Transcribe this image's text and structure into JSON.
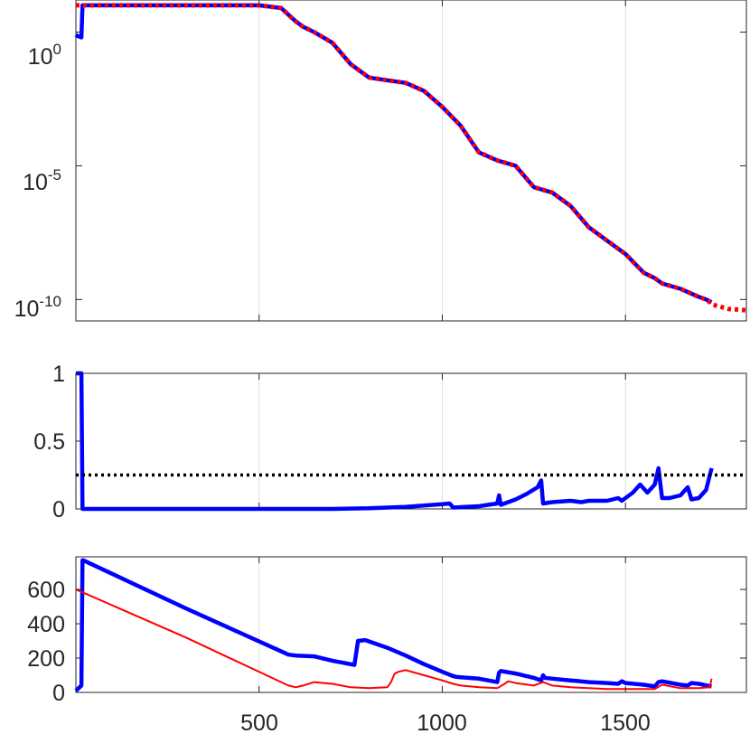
{
  "chart_data": [
    {
      "type": "line",
      "title": "",
      "xlabel": "",
      "ylabel": "",
      "xlim": [
        0,
        1830
      ],
      "xticks": [
        500,
        1000,
        1500
      ],
      "x_ticklabels_visible": false,
      "yscale": "log",
      "ylim_exponents": [
        -10.8,
        1.2
      ],
      "yticks": [
        {
          "base": "10",
          "exp": "0",
          "value_exp": 0
        },
        {
          "base": "10",
          "exp": "-5",
          "value_exp": -5
        },
        {
          "base": "10",
          "exp": "-10",
          "value_exp": -10
        }
      ],
      "grid_x": true,
      "series": [
        {
          "color": "#0000ff",
          "style": "solid",
          "x": [
            0,
            5,
            15,
            18,
            20,
            100,
            200,
            300,
            400,
            500,
            560,
            600,
            620,
            650,
            700,
            750,
            800,
            850,
            900,
            950,
            1000,
            1050,
            1100,
            1150,
            1200,
            1250,
            1300,
            1350,
            1400,
            1450,
            1500,
            1550,
            1580,
            1600,
            1650,
            1700,
            1720,
            1735
          ],
          "y_log10": [
            -0.1,
            -0.15,
            -0.2,
            1.0,
            1.0,
            1.0,
            1.0,
            1.0,
            1.0,
            1.0,
            0.9,
            0.4,
            0.2,
            0.0,
            -0.4,
            -1.2,
            -1.7,
            -1.8,
            -1.9,
            -2.2,
            -2.8,
            -3.5,
            -4.5,
            -4.8,
            -5.0,
            -5.8,
            -6.0,
            -6.5,
            -7.3,
            -7.8,
            -8.3,
            -9.0,
            -9.2,
            -9.4,
            -9.6,
            -9.9,
            -10.0,
            -10.1
          ]
        },
        {
          "color": "#ff0000",
          "style": "dotted",
          "x": [
            0,
            100,
            200,
            300,
            400,
            500,
            560,
            600,
            620,
            650,
            700,
            750,
            800,
            850,
            900,
            950,
            1000,
            1050,
            1100,
            1150,
            1200,
            1250,
            1300,
            1350,
            1400,
            1450,
            1500,
            1550,
            1580,
            1600,
            1650,
            1700,
            1720,
            1740,
            1780,
            1830
          ],
          "y_log10": [
            1.0,
            1.0,
            1.0,
            1.0,
            1.0,
            1.0,
            0.9,
            0.4,
            0.2,
            0.0,
            -0.4,
            -1.2,
            -1.7,
            -1.8,
            -1.9,
            -2.2,
            -2.8,
            -3.5,
            -4.5,
            -4.8,
            -5.0,
            -5.8,
            -6.0,
            -6.5,
            -7.3,
            -7.8,
            -8.3,
            -9.0,
            -9.2,
            -9.4,
            -9.6,
            -9.9,
            -10.0,
            -10.2,
            -10.35,
            -10.4
          ]
        }
      ]
    },
    {
      "type": "line",
      "title": "",
      "xlabel": "",
      "ylabel": "",
      "xlim": [
        0,
        1830
      ],
      "ylim": [
        0,
        1
      ],
      "xticks": [
        500,
        1000,
        1500
      ],
      "x_ticklabels_visible": false,
      "yticks": [
        "0",
        "0.5",
        "1"
      ],
      "grid_x": true,
      "series": [
        {
          "color": "#0000ff",
          "style": "solid",
          "x": [
            0,
            5,
            10,
            15,
            18,
            100,
            200,
            300,
            400,
            500,
            600,
            700,
            800,
            850,
            900,
            950,
            1000,
            1020,
            1030,
            1100,
            1150,
            1155,
            1160,
            1180,
            1200,
            1230,
            1260,
            1270,
            1275,
            1300,
            1350,
            1380,
            1400,
            1450,
            1480,
            1490,
            1520,
            1540,
            1560,
            1580,
            1590,
            1600,
            1620,
            1650,
            1670,
            1680,
            1700,
            1720,
            1735
          ],
          "y": [
            1.0,
            1.0,
            1.0,
            1.0,
            0.0,
            0.0,
            0.0,
            0.0,
            0.0,
            0.0,
            0.0,
            0.0,
            0.005,
            0.01,
            0.015,
            0.025,
            0.035,
            0.04,
            0.01,
            0.02,
            0.04,
            0.1,
            0.03,
            0.05,
            0.07,
            0.11,
            0.16,
            0.21,
            0.04,
            0.05,
            0.06,
            0.05,
            0.06,
            0.06,
            0.08,
            0.06,
            0.12,
            0.18,
            0.12,
            0.18,
            0.3,
            0.08,
            0.08,
            0.1,
            0.16,
            0.07,
            0.08,
            0.14,
            0.3
          ]
        },
        {
          "color": "#000000",
          "style": "dotted",
          "x": [
            0,
            1830
          ],
          "y": [
            0.25,
            0.25
          ]
        }
      ]
    },
    {
      "type": "line",
      "title": "",
      "xlabel": "",
      "ylabel": "",
      "xlim": [
        0,
        1830
      ],
      "ylim": [
        0,
        790
      ],
      "xticks": [
        500,
        1000,
        1500
      ],
      "xtick_labels": [
        "500",
        "1000",
        "1500"
      ],
      "yticks": [
        "0",
        "200",
        "400",
        "600"
      ],
      "grid_x": true,
      "series": [
        {
          "color": "#0000ff",
          "style": "solid",
          "x": [
            0,
            10,
            15,
            18,
            20,
            300,
            580,
            600,
            650,
            700,
            760,
            765,
            770,
            790,
            850,
            900,
            950,
            1000,
            1030,
            1040,
            1100,
            1150,
            1155,
            1160,
            1200,
            1250,
            1270,
            1275,
            1280,
            1300,
            1350,
            1400,
            1450,
            1480,
            1490,
            1500,
            1550,
            1580,
            1590,
            1600,
            1650,
            1670,
            1680,
            1700,
            1735
          ],
          "y": [
            10,
            30,
            40,
            770,
            770,
            490,
            220,
            215,
            210,
            185,
            160,
            230,
            300,
            305,
            260,
            215,
            165,
            120,
            95,
            90,
            80,
            60,
            115,
            125,
            110,
            85,
            70,
            100,
            85,
            80,
            70,
            60,
            55,
            50,
            65,
            55,
            45,
            35,
            60,
            65,
            45,
            40,
            55,
            50,
            35
          ]
        },
        {
          "color": "#ff0000",
          "style": "solid",
          "x": [
            0,
            300,
            580,
            600,
            620,
            650,
            700,
            750,
            800,
            850,
            860,
            870,
            880,
            900,
            950,
            1000,
            1030,
            1050,
            1100,
            1150,
            1170,
            1180,
            1200,
            1250,
            1275,
            1300,
            1350,
            1400,
            1450,
            1500,
            1550,
            1580,
            1600,
            1650,
            1700,
            1730,
            1735
          ],
          "y": [
            600,
            320,
            40,
            30,
            40,
            60,
            50,
            30,
            25,
            30,
            60,
            110,
            120,
            130,
            100,
            70,
            50,
            40,
            30,
            25,
            50,
            65,
            55,
            40,
            60,
            40,
            30,
            25,
            20,
            20,
            20,
            20,
            45,
            25,
            25,
            30,
            80
          ]
        }
      ]
    }
  ]
}
